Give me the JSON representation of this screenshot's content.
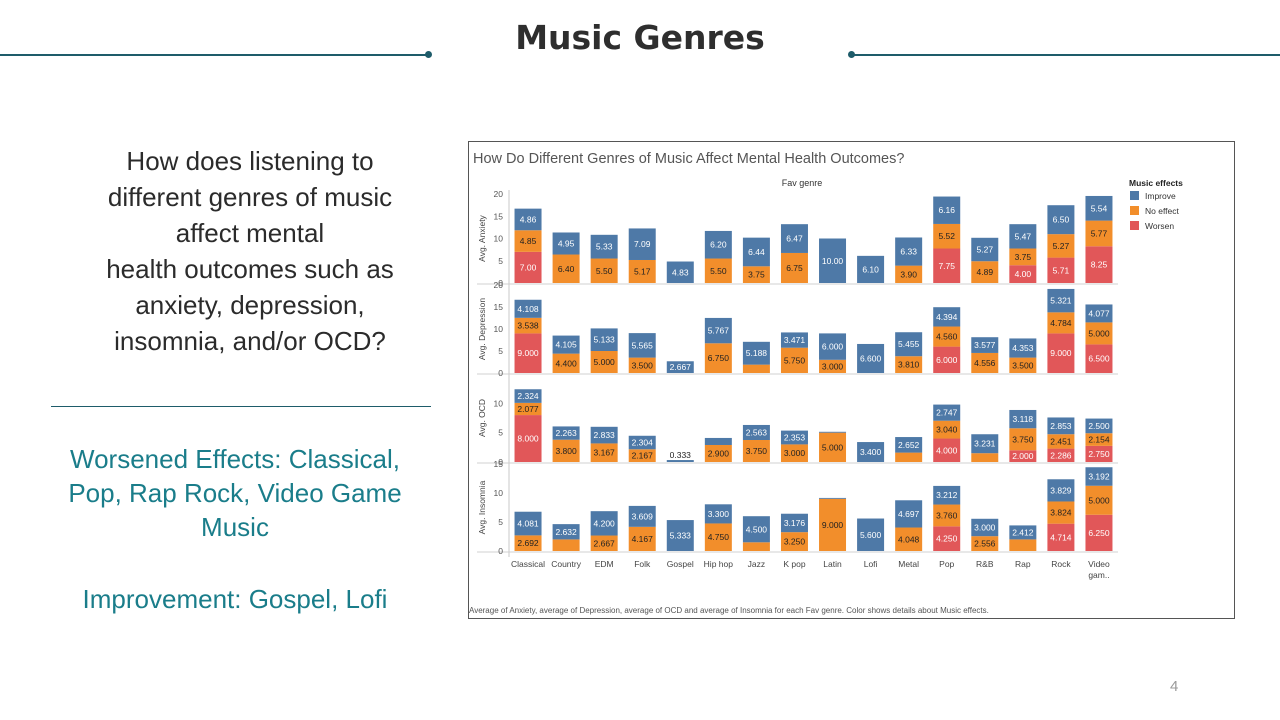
{
  "slide": {
    "title": "Music Genres",
    "question_lines": [
      "How does listening to",
      "different genres of music",
      "affect mental",
      "health outcomes such as",
      "anxiety, depression,",
      "insomnia, and/or OCD?"
    ],
    "worsened_lines": [
      "Worsened Effects: Classical,",
      "Pop, Rap Rock, Video Game",
      "Music"
    ],
    "improvement": "Improvement: Gospel, Lofi",
    "page_number": "4"
  },
  "chart_data": {
    "type": "bar",
    "stacked": true,
    "title": "How Do Different Genres of Music Affect Mental Health Outcomes?",
    "column_header": "Fav genre",
    "categories": [
      "Classical",
      "Country",
      "EDM",
      "Folk",
      "Gospel",
      "Hip hop",
      "Jazz",
      "K pop",
      "Latin",
      "Lofi",
      "Metal",
      "Pop",
      "R&B",
      "Rap",
      "Rock",
      "Video gam.."
    ],
    "legend_title": "Music effects",
    "legend": [
      {
        "name": "Improve",
        "color": "#4e79a7"
      },
      {
        "name": "No effect",
        "color": "#f28e2b"
      },
      {
        "name": "Worsen",
        "color": "#e15759"
      }
    ],
    "legend_position": "right",
    "panels": [
      {
        "ylabel": "Avg. Anxiety",
        "ylim": [
          0,
          20
        ],
        "ticks": [
          0,
          5,
          10,
          15,
          20
        ],
        "worsen": [
          7.0,
          null,
          null,
          null,
          null,
          null,
          null,
          null,
          null,
          null,
          null,
          7.75,
          null,
          4.0,
          5.71,
          8.25
        ],
        "noeffect": [
          4.85,
          6.4,
          5.5,
          5.17,
          null,
          5.5,
          3.75,
          6.75,
          null,
          null,
          3.9,
          5.52,
          4.89,
          3.75,
          5.27,
          5.77
        ],
        "improve": [
          4.86,
          4.95,
          5.33,
          7.09,
          4.83,
          6.2,
          6.44,
          6.47,
          10.0,
          6.1,
          6.33,
          6.16,
          5.27,
          5.47,
          6.5,
          5.54
        ],
        "labels": {
          "worsen": [
            "7.00",
            "",
            "",
            "",
            "",
            "",
            "",
            "",
            "",
            "",
            "",
            "7.75",
            "",
            "4.00",
            "5.71",
            "8.25"
          ],
          "noeffect": [
            "4.85",
            "6.40",
            "5.50",
            "5.17",
            "",
            "5.50",
            "3.75",
            "6.75",
            "",
            "",
            "3.90",
            "5.52",
            "4.89",
            "3.75",
            "5.27",
            "5.77"
          ],
          "improve": [
            "4.86",
            "4.95",
            "5.33",
            "7.09",
            "4.83",
            "6.20",
            "6.44",
            "6.47",
            "10.00",
            "6.10",
            "6.33",
            "6.16",
            "5.27",
            "5.47",
            "6.50",
            "5.54"
          ]
        }
      },
      {
        "ylabel": "Avg. Depression",
        "ylim": [
          0,
          20
        ],
        "ticks": [
          0,
          5,
          10,
          15,
          20
        ],
        "worsen": [
          9.0,
          null,
          null,
          null,
          null,
          null,
          null,
          null,
          null,
          null,
          null,
          6.0,
          null,
          null,
          9.0,
          6.5
        ],
        "noeffect": [
          3.538,
          4.4,
          5.0,
          3.5,
          null,
          6.75,
          1.9,
          5.75,
          3.0,
          null,
          3.81,
          4.56,
          4.556,
          3.5,
          4.784,
          5.0
        ],
        "improve": [
          4.108,
          4.105,
          5.133,
          5.565,
          2.667,
          5.767,
          5.188,
          3.471,
          6.0,
          6.6,
          5.455,
          4.394,
          3.577,
          4.353,
          5.321,
          4.077
        ],
        "labels": {
          "worsen": [
            "9.000",
            "",
            "",
            "",
            "",
            "",
            "",
            "",
            "",
            "",
            "",
            "6.000",
            "",
            "",
            "9.000",
            "6.500"
          ],
          "noeffect": [
            "3.538",
            "4.400",
            "5.000",
            "3.500",
            "",
            "6.750",
            "",
            "5.750",
            "3.000",
            "",
            "3.810",
            "4.560",
            "4.556",
            "3.500",
            "4.784",
            "5.000"
          ],
          "improve": [
            "4.108",
            "4.105",
            "5.133",
            "5.565",
            "2.667",
            "5.767",
            "5.188",
            "3.471",
            "6.000",
            "6.600",
            "5.455",
            "4.394",
            "3.577",
            "4.353",
            "5.321",
            "4.077"
          ]
        }
      },
      {
        "ylabel": "Avg. OCD",
        "ylim": [
          0,
          15
        ],
        "ticks": [
          0,
          5,
          10
        ],
        "worsen": [
          8.0,
          null,
          null,
          null,
          null,
          null,
          null,
          null,
          null,
          null,
          null,
          4.0,
          null,
          2.0,
          2.286,
          2.75
        ],
        "noeffect": [
          2.077,
          3.8,
          3.167,
          2.167,
          null,
          2.9,
          3.75,
          3.0,
          5.0,
          null,
          1.6,
          3.04,
          1.5,
          3.75,
          2.451,
          2.154
        ],
        "improve": [
          2.324,
          2.263,
          2.833,
          2.304,
          0.333,
          1.2,
          2.563,
          2.353,
          0.15,
          3.4,
          2.652,
          2.747,
          3.231,
          3.118,
          2.853,
          2.5
        ],
        "labels": {
          "worsen": [
            "8.000",
            "",
            "",
            "",
            "",
            "",
            "",
            "",
            "",
            "",
            "",
            "4.000",
            "",
            "2.000",
            "2.286",
            "2.750"
          ],
          "noeffect": [
            "2.077",
            "3.800",
            "3.167",
            "2.167",
            "",
            "2.900",
            "3.750",
            "3.000",
            "5.000",
            "",
            "",
            "3.040",
            "",
            "3.750",
            "2.451",
            "2.154"
          ],
          "improve": [
            "2.324",
            "2.263",
            "2.833",
            "2.304",
            "0.333",
            "",
            "2.563",
            "2.353",
            "",
            "3.400",
            "2.652",
            "2.747",
            "3.231",
            "3.118",
            "2.853",
            "2.500"
          ]
        }
      },
      {
        "ylabel": "Avg. Insomnia",
        "ylim": [
          0,
          15
        ],
        "ticks": [
          0,
          5,
          10,
          15
        ],
        "worsen": [
          null,
          null,
          null,
          null,
          null,
          null,
          null,
          null,
          null,
          null,
          null,
          4.25,
          null,
          null,
          4.714,
          6.25
        ],
        "noeffect": [
          2.692,
          2.0,
          2.667,
          4.167,
          null,
          4.75,
          1.5,
          3.25,
          9.0,
          null,
          4.048,
          3.76,
          2.556,
          2.0,
          3.824,
          5.0
        ],
        "improve": [
          4.081,
          2.632,
          4.2,
          3.609,
          5.333,
          3.3,
          4.5,
          3.176,
          0.15,
          5.6,
          4.697,
          3.212,
          3.0,
          2.412,
          3.829,
          3.192
        ],
        "labels": {
          "worsen": [
            "",
            "",
            "",
            "",
            "",
            "",
            "",
            "",
            "",
            "",
            "",
            "4.250",
            "",
            "",
            "4.714",
            "6.250"
          ],
          "noeffect": [
            "2.692",
            "",
            "2.667",
            "4.167",
            "",
            "4.750",
            "",
            "3.250",
            "9.000",
            "",
            "4.048",
            "3.760",
            "2.556",
            "",
            "3.824",
            "5.000"
          ],
          "improve": [
            "4.081",
            "2.632",
            "4.200",
            "3.609",
            "5.333",
            "3.300",
            "4.500",
            "3.176",
            "",
            "5.600",
            "4.697",
            "3.212",
            "3.000",
            "2.412",
            "3.829",
            "3.192"
          ]
        }
      }
    ],
    "caption": "Average of Anxiety, average of Depression, average of OCD and average of Insomnia for each Fav genre.  Color shows details about Music effects."
  }
}
